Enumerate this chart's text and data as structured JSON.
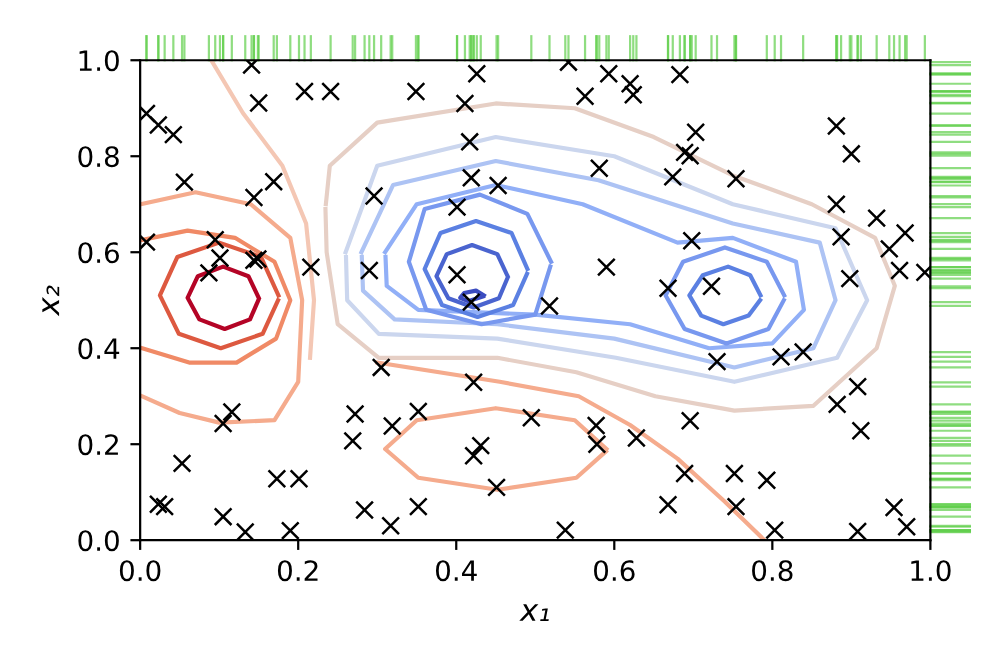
{
  "chart_data": {
    "type": "scatter",
    "xlabel": "x₁",
    "ylabel": "x₂",
    "xlim": [
      0,
      1
    ],
    "ylim": [
      0,
      1
    ],
    "xticks": [
      {
        "value": 0,
        "label": "0.0"
      },
      {
        "value": 0.2,
        "label": "0.2"
      },
      {
        "value": 0.4,
        "label": "0.4"
      },
      {
        "value": 0.6,
        "label": "0.6"
      },
      {
        "value": 0.8,
        "label": "0.8"
      },
      {
        "value": 1,
        "label": "1.0"
      }
    ],
    "yticks": [
      {
        "value": 0,
        "label": "0.0"
      },
      {
        "value": 0.2,
        "label": "0.2"
      },
      {
        "value": 0.4,
        "label": "0.4"
      },
      {
        "value": 0.6,
        "label": "0.6"
      },
      {
        "value": 0.8,
        "label": "0.8"
      },
      {
        "value": 1,
        "label": "1.0"
      }
    ],
    "grid": false,
    "series": [
      {
        "type": "line",
        "color": "#e6cfc5",
        "x": [
          0.235,
          0.24,
          0.3,
          0.45,
          0.55,
          0.65,
          0.75,
          0.85,
          0.93,
          0.955,
          0.932,
          0.852,
          0.752,
          0.652,
          0.552,
          0.452,
          0.302,
          0.25,
          0.236,
          0.2345
        ],
        "values": [
          0.7,
          0.78,
          0.87,
          0.91,
          0.9,
          0.84,
          0.76,
          0.7,
          0.63,
          0.53,
          0.4,
          0.28,
          0.27,
          0.3,
          0.35,
          0.38,
          0.38,
          0.45,
          0.6,
          0.69
        ]
      },
      {
        "type": "line",
        "color": "#cbd6ee",
        "x": [
          0.26,
          0.3,
          0.45,
          0.6,
          0.75,
          0.88,
          0.92,
          0.882,
          0.752,
          0.602,
          0.452,
          0.302,
          0.262,
          0.2605
        ],
        "values": [
          0.6,
          0.78,
          0.84,
          0.8,
          0.7,
          0.65,
          0.5,
          0.38,
          0.33,
          0.38,
          0.42,
          0.43,
          0.5,
          0.59
        ]
      },
      {
        "type": "line",
        "color": "#adc3f4",
        "x": [
          0.28,
          0.32,
          0.45,
          0.58,
          0.75,
          0.86,
          0.88,
          0.852,
          0.752,
          0.6,
          0.452,
          0.322,
          0.282,
          0.2805
        ],
        "values": [
          0.6,
          0.74,
          0.79,
          0.75,
          0.66,
          0.62,
          0.5,
          0.4,
          0.36,
          0.42,
          0.45,
          0.46,
          0.52,
          0.59
        ]
      },
      {
        "type": "line",
        "color": "#91aff7",
        "x": [
          0.31,
          0.35,
          0.45,
          0.56,
          0.68,
          0.75,
          0.83,
          0.84,
          0.8,
          0.72,
          0.62,
          0.5,
          0.352,
          0.312,
          0.3105
        ],
        "values": [
          0.6,
          0.7,
          0.74,
          0.7,
          0.62,
          0.63,
          0.58,
          0.48,
          0.41,
          0.4,
          0.45,
          0.47,
          0.48,
          0.53,
          0.59
        ]
      },
      {
        "type": "line",
        "color": "#7898ef",
        "x": [
          0.52,
          0.49,
          0.43,
          0.36,
          0.34,
          0.362,
          0.432,
          0.5,
          0.519,
          null,
          0.815,
          0.793,
          0.74,
          0.687,
          0.665,
          0.689,
          0.742,
          0.795,
          0.8145
        ],
        "values": [
          0.58,
          0.68,
          0.72,
          0.69,
          0.58,
          0.48,
          0.45,
          0.47,
          0.57,
          null,
          0.51,
          0.58,
          0.61,
          0.58,
          0.51,
          0.44,
          0.41,
          0.44,
          0.5
        ]
      },
      {
        "type": "line",
        "color": "#5b80e2",
        "x": [
          0.49,
          0.47,
          0.425,
          0.38,
          0.36,
          0.382,
          0.427,
          0.472,
          0.4895,
          null,
          0.785,
          0.772,
          0.744,
          0.712,
          0.695,
          0.71,
          0.738,
          0.77,
          0.7845
        ],
        "values": [
          0.565,
          0.64,
          0.665,
          0.64,
          0.565,
          0.49,
          0.465,
          0.49,
          0.555,
          null,
          0.51,
          0.552,
          0.57,
          0.552,
          0.51,
          0.468,
          0.45,
          0.468,
          0.5
        ]
      },
      {
        "type": "line",
        "color": "#4a64cf",
        "x": [
          0.465,
          0.452,
          0.42,
          0.388,
          0.375,
          0.39,
          0.422,
          0.454,
          0.4645
        ],
        "values": [
          0.55,
          0.596,
          0.615,
          0.596,
          0.55,
          0.504,
          0.485,
          0.504,
          0.545
        ]
      },
      {
        "type": "line",
        "color": "#3b4cc0",
        "x": [
          0.435,
          0.425,
          0.41,
          0.405,
          0.415,
          0.434
        ],
        "values": [
          0.51,
          0.52,
          0.515,
          0.505,
          0.498,
          0.508
        ]
      },
      {
        "type": "line",
        "color": "#b40426",
        "x": [
          0.15,
          0.137,
          0.105,
          0.073,
          0.06,
          0.075,
          0.107,
          0.139,
          0.1495
        ],
        "values": [
          0.505,
          0.55,
          0.57,
          0.55,
          0.505,
          0.46,
          0.44,
          0.46,
          0.5
        ]
      },
      {
        "type": "line",
        "color": "#dd5940",
        "x": [
          0.175,
          0.153,
          0.1,
          0.047,
          0.025,
          0.049,
          0.102,
          0.155,
          0.1745
        ],
        "values": [
          0.51,
          0.59,
          0.62,
          0.59,
          0.51,
          0.43,
          0.4,
          0.43,
          0.5
        ]
      },
      {
        "type": "line",
        "color": "#f08a66",
        "x": [
          0,
          0.06,
          0.12,
          0.17,
          0.19,
          0.172,
          0.122,
          0.062,
          0.002
        ],
        "values": [
          0.625,
          0.645,
          0.63,
          0.58,
          0.5,
          0.42,
          0.37,
          0.37,
          0.4
        ]
      },
      {
        "type": "line",
        "color": "#f5ab8d",
        "x": [
          0,
          0.07,
          0.14,
          0.19,
          0.205,
          0.2,
          0.17,
          0.1,
          0.05,
          0.002,
          null,
          0.59,
          0.55,
          0.45,
          0.35,
          0.31,
          0.352,
          0.452,
          0.552,
          0.5895,
          null,
          0.3,
          0.455,
          0.555,
          0.62,
          0.68,
          0.74,
          0.79
        ],
        "values": [
          0.7,
          0.725,
          0.7,
          0.63,
          0.5,
          0.33,
          0.25,
          0.245,
          0.265,
          0.3,
          null,
          0.19,
          0.25,
          0.275,
          0.25,
          0.19,
          0.13,
          0.105,
          0.13,
          0.185,
          null,
          0.37,
          0.33,
          0.3,
          0.24,
          0.17,
          0.08,
          0
        ]
      },
      {
        "type": "line",
        "color": "#f4c7b4",
        "x": [
          0.09,
          0.13,
          0.18,
          0.21,
          0.22,
          0.215
        ],
        "values": [
          1,
          0.89,
          0.78,
          0.66,
          0.5,
          0.38
        ]
      },
      {
        "marker": "cross",
        "color": "#000000",
        "x": [
          0.141,
          0.208,
          0.241,
          0.15,
          0.349,
          0.426,
          0.411,
          0.008,
          0.023,
          0.042,
          0.417,
          0.056,
          0.169,
          0.144,
          0.419,
          0.453,
          0.296,
          0.401,
          0.008,
          0.095,
          0.101,
          0.144,
          0.149,
          0.216,
          0.29,
          0.401,
          0.087,
          0.542,
          0.593,
          0.62,
          0.624,
          0.683,
          0.563,
          0.703,
          0.689,
          0.696,
          0.881,
          0.9,
          0.581,
          0.674,
          0.754,
          0.881,
          0.932,
          0.968,
          0.887,
          0.948,
          0.698,
          0.961,
          0.993,
          0.59,
          0.898,
          0.668,
          0.723,
          0.419,
          0.305,
          0.422,
          0.116,
          0.105,
          0.272,
          0.352,
          0.319,
          0.269,
          0.495,
          0.431,
          0.422,
          0.053,
          0.451,
          0.173,
          0.201,
          0.023,
          0.031,
          0.105,
          0.133,
          0.19,
          0.284,
          0.317,
          0.352,
          0.518,
          0.73,
          0.811,
          0.839,
          0.908,
          0.882,
          0.912,
          0.577,
          0.578,
          0.628,
          0.696,
          0.689,
          0.752,
          0.793,
          0.668,
          0.754,
          0.538,
          0.803,
          0.908,
          0.954,
          0.97
        ],
        "values": [
          0.99,
          0.935,
          0.935,
          0.911,
          0.935,
          0.972,
          0.91,
          0.889,
          0.865,
          0.845,
          0.83,
          0.746,
          0.747,
          0.714,
          0.755,
          0.739,
          0.717,
          0.694,
          0.621,
          0.626,
          0.588,
          0.583,
          0.586,
          0.569,
          0.562,
          0.553,
          0.557,
          0.996,
          0.972,
          0.951,
          0.928,
          0.97,
          0.925,
          0.85,
          0.808,
          0.801,
          0.863,
          0.805,
          0.775,
          0.757,
          0.753,
          0.7,
          0.671,
          0.64,
          0.632,
          0.607,
          0.624,
          0.562,
          0.558,
          0.569,
          0.545,
          0.525,
          0.529,
          0.496,
          0.36,
          0.329,
          0.267,
          0.243,
          0.263,
          0.268,
          0.238,
          0.207,
          0.255,
          0.197,
          0.176,
          0.16,
          0.11,
          0.128,
          0.128,
          0.075,
          0.07,
          0.049,
          0.017,
          0.02,
          0.063,
          0.03,
          0.07,
          0.488,
          0.372,
          0.382,
          0.392,
          0.32,
          0.283,
          0.228,
          0.239,
          0.2,
          0.213,
          0.249,
          0.139,
          0.139,
          0.125,
          0.074,
          0.07,
          0.021,
          0.021,
          0.018,
          0.068,
          0.028
        ]
      }
    ]
  }
}
